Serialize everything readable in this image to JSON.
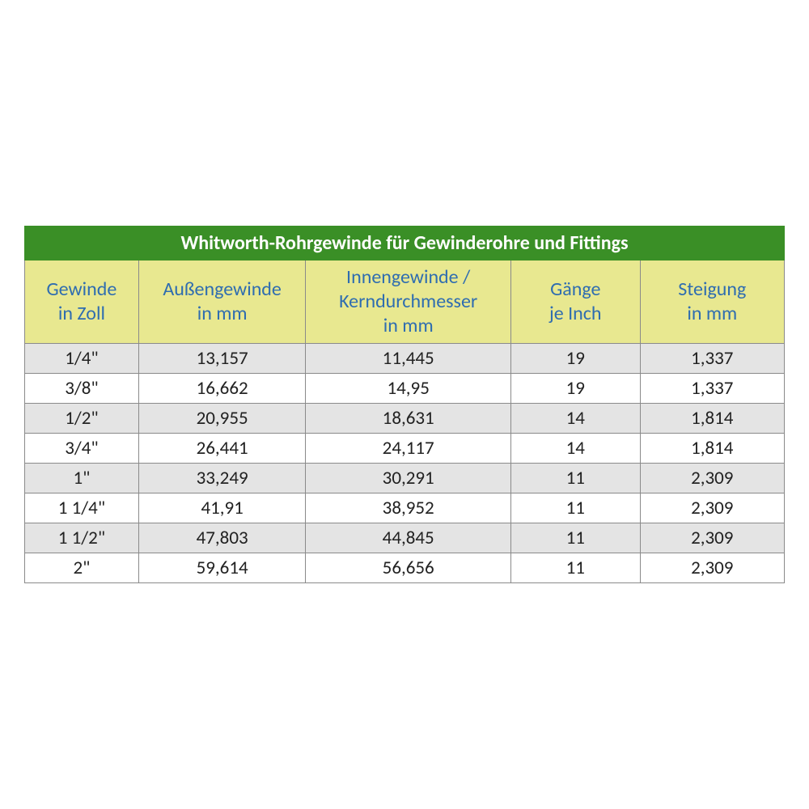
{
  "table": {
    "type": "table",
    "title": "Whitworth-Rohrgewinde für Gewinderohre und Fittings",
    "title_bg": "#3a8f26",
    "title_color": "#ffffff",
    "title_fontsize": 24,
    "header_bg": "#e8e890",
    "header_color": "#2f6db0",
    "header_fontsize": 24,
    "body_fontsize": 23,
    "border_color": "#8a8a8a",
    "row_odd_bg": "#e4e4e4",
    "row_even_bg": "#ffffff",
    "background_color": "#ffffff",
    "columns": [
      {
        "label_line1": "Gewinde",
        "label_line2": "in Zoll",
        "width_pct": 15,
        "align": "center"
      },
      {
        "label_line1": "Außengewinde",
        "label_line2": "in mm",
        "width_pct": 22,
        "align": "center"
      },
      {
        "label_line1": "Innengewinde /",
        "label_line2": "Kerndurchmesser",
        "label_line3": "in mm",
        "width_pct": 27,
        "align": "center"
      },
      {
        "label_line1": "Gänge",
        "label_line2": "je Inch",
        "width_pct": 17,
        "align": "center"
      },
      {
        "label_line1": "Steigung",
        "label_line2": "in mm",
        "width_pct": 19,
        "align": "center"
      }
    ],
    "rows": [
      [
        "1/4\"",
        "13,157",
        "11,445",
        "19",
        "1,337"
      ],
      [
        "3/8\"",
        "16,662",
        "14,95",
        "19",
        "1,337"
      ],
      [
        "1/2\"",
        "20,955",
        "18,631",
        "14",
        "1,814"
      ],
      [
        "3/4\"",
        "26,441",
        "24,117",
        "14",
        "1,814"
      ],
      [
        "1\"",
        "33,249",
        "30,291",
        "11",
        "2,309"
      ],
      [
        "1 1/4\"",
        "41,91",
        "38,952",
        "11",
        "2,309"
      ],
      [
        "1 1/2\"",
        "47,803",
        "44,845",
        "11",
        "2,309"
      ],
      [
        "2\"",
        "59,614",
        "56,656",
        "11",
        "2,309"
      ]
    ]
  }
}
